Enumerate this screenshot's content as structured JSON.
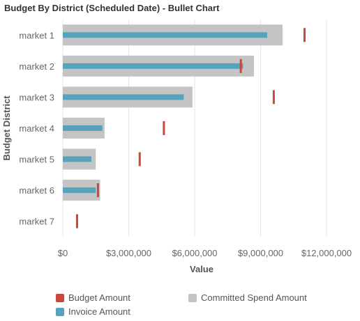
{
  "chart_data": {
    "type": "bullet",
    "title": "Budget By District (Scheduled Date) - Bullet Chart",
    "xlabel": "Value",
    "ylabel": "Budget District",
    "xlim": [
      0,
      12000000
    ],
    "x_ticks": [
      0,
      3000000,
      6000000,
      9000000,
      12000000
    ],
    "x_tick_labels": [
      "$0",
      "$3,000,000",
      "$6,000,000",
      "$9,000,000",
      "$12,000,000"
    ],
    "categories": [
      "market 1",
      "market 2",
      "market 3",
      "market 4",
      "market 5",
      "market 6",
      "market 7"
    ],
    "series": [
      {
        "name": "Committed Spend Amount",
        "role": "range",
        "values": [
          10000000,
          8700000,
          5900000,
          1900000,
          1500000,
          1700000,
          0
        ]
      },
      {
        "name": "Invoice Amount",
        "role": "actual",
        "values": [
          9300000,
          8200000,
          5500000,
          1800000,
          1300000,
          1500000,
          0
        ]
      },
      {
        "name": "Budget Amount",
        "role": "target",
        "values": [
          11000000,
          8100000,
          9600000,
          4600000,
          3500000,
          1600000,
          650000
        ]
      }
    ],
    "grid": true,
    "legend_position": "bottom"
  },
  "colors": {
    "committed": "#c4c4c4",
    "invoice": "#57a3bd",
    "budget": "#c9473b",
    "grid": "#e6e6e6",
    "axis_text": "#666666"
  },
  "legend": {
    "budget": "Budget Amount",
    "committed": "Committed Spend Amount",
    "invoice": "Invoice Amount"
  }
}
